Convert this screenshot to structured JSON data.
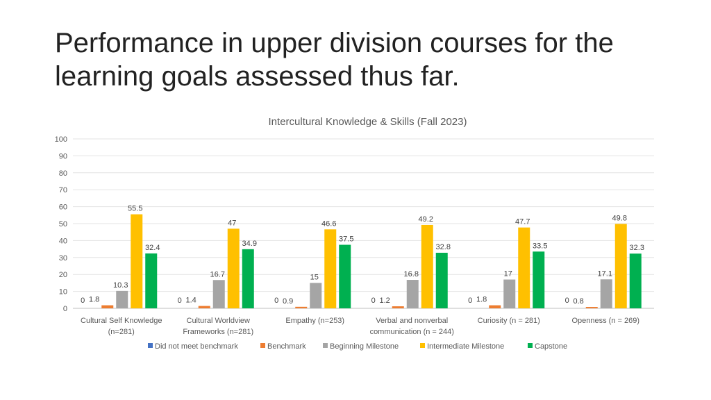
{
  "slide": {
    "title": "Performance in upper division courses for the learning goals assessed thus far."
  },
  "colors": {
    "Did not meet benchmark": "#4472c4",
    "Benchmark": "#ed7d31",
    "Beginning Milestone": "#a5a5a5",
    "Intermediate Milestone": "#ffc000",
    "Capstone": "#00b050"
  },
  "chart_data": {
    "type": "bar",
    "title": "Intercultural Knowledge & Skills (Fall 2023)",
    "xlabel": "",
    "ylabel": "",
    "ylim": [
      0,
      100
    ],
    "yticks": [
      0,
      10,
      20,
      30,
      40,
      50,
      60,
      70,
      80,
      90,
      100
    ],
    "grid": true,
    "legend": "bottom",
    "categories": [
      [
        "Cultural Self Knowledge",
        "(n=281)"
      ],
      [
        "Cultural Worldview",
        "Frameworks (n=281)"
      ],
      [
        "Empathy (n=253)"
      ],
      [
        "Verbal and nonverbal",
        "communication (n = 244)"
      ],
      [
        "Curiosity (n = 281)"
      ],
      [
        "Openness (n = 269)"
      ]
    ],
    "series": [
      {
        "name": "Did not meet benchmark",
        "values": [
          0,
          0,
          0,
          0,
          0,
          0
        ]
      },
      {
        "name": "Benchmark",
        "values": [
          1.8,
          1.4,
          0.9,
          1.2,
          1.8,
          0.8
        ]
      },
      {
        "name": "Beginning Milestone",
        "values": [
          10.3,
          16.7,
          15,
          16.8,
          17,
          17.1
        ]
      },
      {
        "name": "Intermediate Milestone",
        "values": [
          55.5,
          47,
          46.6,
          49.2,
          47.7,
          49.8
        ]
      },
      {
        "name": "Capstone",
        "values": [
          32.4,
          34.9,
          37.5,
          32.8,
          33.5,
          32.3
        ]
      }
    ]
  }
}
